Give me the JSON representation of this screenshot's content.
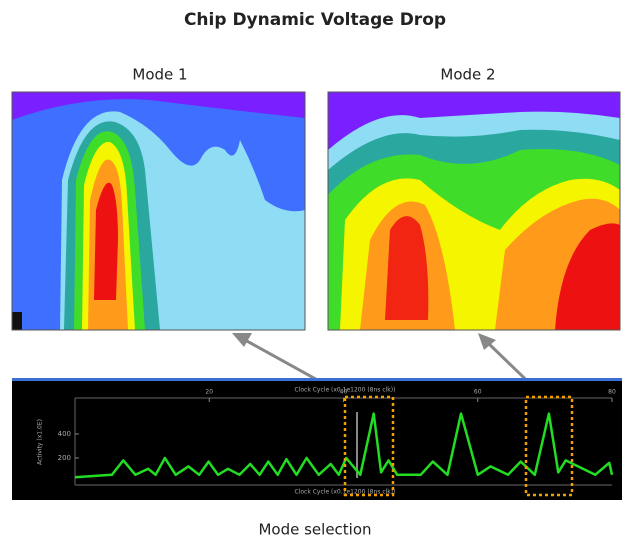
{
  "header": {
    "title": "Chip Dynamic Voltage Drop"
  },
  "panels": [
    {
      "label": "Mode 1"
    },
    {
      "label": "Mode 2"
    }
  ],
  "waveform": {
    "top_axis_label": "Clock Cycle (x0.1e1200 (8ns clk))",
    "bottom_axis_label": "Clock Cycle (x0.1e1200 (8ns clk))",
    "y_axis_label": "Activity (x1.0E)",
    "color": "#22dd22",
    "xlim": [
      0,
      80
    ],
    "xticks": [
      20,
      40,
      60,
      80
    ],
    "ylim": [
      0,
      700
    ],
    "yticks": [
      200,
      400
    ],
    "x": [
      0,
      5.5,
      7.2,
      9,
      10.9,
      12,
      13.4,
      15,
      16.9,
      18.5,
      19.9,
      21.3,
      22.8,
      24.5,
      26.1,
      27.5,
      28.8,
      30.2,
      31.5,
      33,
      34.5,
      36.3,
      38.1,
      39.3,
      40.4,
      42.5,
      44.5,
      45.6,
      46.7,
      48,
      51.5,
      53.3,
      55.5,
      57.5,
      60,
      61.9,
      64.5,
      66.4,
      68.5,
      70.6,
      72,
      73.1,
      77.5,
      79.6,
      80
    ],
    "values": [
      40,
      60,
      180,
      60,
      110,
      60,
      200,
      60,
      130,
      60,
      170,
      60,
      110,
      60,
      150,
      60,
      170,
      60,
      190,
      60,
      200,
      60,
      150,
      60,
      200,
      60,
      570,
      80,
      180,
      60,
      60,
      170,
      60,
      570,
      60,
      130,
      60,
      170,
      60,
      570,
      80,
      180,
      60,
      160,
      60
    ]
  },
  "caption": "Mode selection"
}
